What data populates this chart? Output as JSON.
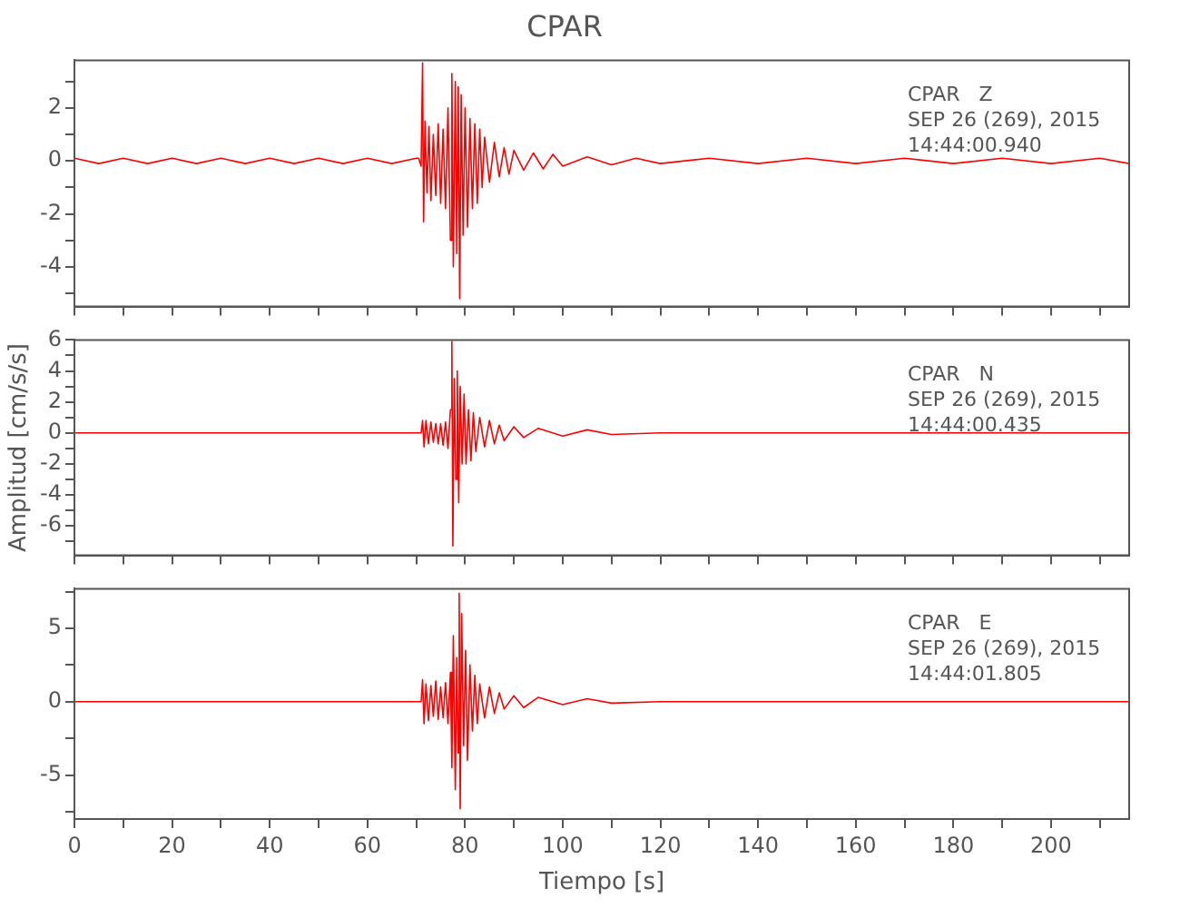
{
  "chart_data": [
    {
      "type": "line",
      "title": "CPAR",
      "annotations": [
        "CPAR   Z",
        "SEP 26 (269), 2015",
        "14:44:00.940"
      ],
      "xlim": [
        0,
        216
      ],
      "xticks": [
        0,
        {
          "value": 10,
          "label": null
        },
        20,
        {
          "value": 30,
          "label": null
        },
        40,
        {
          "value": 50,
          "label": null
        },
        60,
        {
          "value": 70,
          "label": null
        },
        80,
        {
          "value": 90,
          "label": null
        },
        100,
        {
          "value": 110,
          "label": null
        },
        120,
        {
          "value": 130,
          "label": null
        },
        140,
        {
          "value": 150,
          "label": null
        },
        160,
        {
          "value": 170,
          "label": null
        },
        180,
        {
          "value": 190,
          "label": null
        },
        200,
        {
          "value": 210,
          "label": null
        }
      ],
      "ylim": [
        -5.5,
        3.8
      ],
      "yticks": [
        {
          "value": -5,
          "label": null
        },
        -4,
        {
          "value": -3,
          "label": null
        },
        -2,
        {
          "value": -1,
          "label": null
        },
        0,
        {
          "value": 1,
          "label": null
        },
        2,
        {
          "value": 3,
          "label": null
        }
      ],
      "tick_labels": "y",
      "grid": false,
      "legend": false,
      "marker": "none",
      "line_style": "solid",
      "series": [
        {
          "color": "#ff0000",
          "x": [
            0,
            5,
            10,
            15,
            20,
            25,
            30,
            35,
            40,
            45,
            50,
            55,
            60,
            65,
            70,
            70.5,
            71,
            71.3,
            71.5,
            71.8,
            72.2,
            72.6,
            73,
            73.5,
            74,
            74.5,
            75,
            75.5,
            76,
            76.5,
            77,
            77.3,
            77.6,
            78,
            78.3,
            78.6,
            78.9,
            79.2,
            79.6,
            80,
            80.5,
            81,
            81.5,
            82,
            82.5,
            83,
            83.5,
            84,
            85,
            86,
            87,
            88,
            89,
            90,
            92,
            94,
            96,
            98,
            100,
            105,
            110,
            115,
            120,
            130,
            140,
            150,
            160,
            170,
            180,
            190,
            200,
            210,
            216
          ],
          "values": [
            0.1,
            -0.1,
            0.1,
            -0.1,
            0.1,
            -0.1,
            0.1,
            -0.1,
            0.1,
            -0.1,
            0.1,
            -0.1,
            0.1,
            -0.1,
            0.1,
            0.1,
            -0.2,
            3.7,
            -2.3,
            1.5,
            -1.2,
            1.3,
            -1.5,
            1,
            -1.3,
            1.4,
            -1.6,
            1.2,
            -1.8,
            2,
            -3,
            3.3,
            -4,
            3,
            -3.5,
            2.8,
            -5.2,
            2.5,
            -2.8,
            2,
            -2.5,
            1.6,
            -1.8,
            1.4,
            -1.6,
            1.2,
            -1,
            0.9,
            -0.8,
            0.7,
            -0.6,
            0.5,
            -0.5,
            0.4,
            -0.35,
            0.3,
            -0.3,
            0.25,
            -0.2,
            0.15,
            -0.15,
            0.1,
            -0.1,
            0.1,
            -0.1,
            0.1,
            -0.1,
            0.1,
            -0.1,
            0.1,
            -0.1,
            0.1,
            -0.1
          ]
        }
      ]
    },
    {
      "type": "line",
      "ylabel": "Amplitud [cm/s/s]",
      "annotations": [
        "CPAR   N",
        "SEP 26 (269), 2015",
        "14:44:00.435"
      ],
      "xlim": [
        0,
        216
      ],
      "xticks": [
        0,
        {
          "value": 10,
          "label": null
        },
        20,
        {
          "value": 30,
          "label": null
        },
        40,
        {
          "value": 50,
          "label": null
        },
        60,
        {
          "value": 70,
          "label": null
        },
        80,
        {
          "value": 90,
          "label": null
        },
        100,
        {
          "value": 110,
          "label": null
        },
        120,
        {
          "value": 130,
          "label": null
        },
        140,
        {
          "value": 150,
          "label": null
        },
        160,
        {
          "value": 170,
          "label": null
        },
        180,
        {
          "value": 190,
          "label": null
        },
        200,
        {
          "value": 210,
          "label": null
        }
      ],
      "ylim": [
        -7.9,
        6
      ],
      "yticks": [
        {
          "value": -7,
          "label": null
        },
        -6,
        {
          "value": -5,
          "label": null
        },
        -4,
        {
          "value": -3,
          "label": null
        },
        -2,
        {
          "value": -1,
          "label": null
        },
        0,
        {
          "value": 1,
          "label": null
        },
        2,
        {
          "value": 3,
          "label": null
        },
        4,
        {
          "value": 5,
          "label": null
        },
        6
      ],
      "tick_labels": "y",
      "grid": false,
      "legend": false,
      "marker": "none",
      "line_style": "solid",
      "series": [
        {
          "color": "#ff0000",
          "x": [
            0,
            10,
            20,
            30,
            40,
            50,
            60,
            70,
            71,
            71.3,
            71.6,
            72,
            72.5,
            73,
            73.5,
            74,
            74.5,
            75,
            75.5,
            76,
            76.5,
            77,
            77.3,
            77.5,
            77.8,
            78.1,
            78.4,
            78.7,
            79,
            79.4,
            79.8,
            80.2,
            80.7,
            81.2,
            81.7,
            82.2,
            83,
            84,
            85,
            86,
            87,
            88,
            90,
            92,
            95,
            100,
            105,
            110,
            120,
            140,
            160,
            180,
            200,
            216
          ],
          "values": [
            0,
            0,
            0,
            0,
            0,
            0,
            0,
            0,
            0,
            0.8,
            -0.9,
            0.8,
            -0.7,
            0.7,
            -0.6,
            0.6,
            -0.7,
            0.6,
            -0.8,
            0.7,
            -1,
            1.5,
            5.9,
            -7.3,
            3.5,
            -3,
            4,
            -4.5,
            3,
            -2,
            2.5,
            -2,
            1.5,
            -1.8,
            1.3,
            -1.2,
            1,
            -0.9,
            0.8,
            -0.7,
            0.5,
            -0.5,
            0.4,
            -0.3,
            0.3,
            -0.2,
            0.2,
            -0.1,
            0,
            0,
            0,
            0,
            0,
            0
          ]
        }
      ]
    },
    {
      "type": "line",
      "xlabel": "Tiempo [s]",
      "annotations": [
        "CPAR   E",
        "SEP 26 (269), 2015",
        "14:44:01.805"
      ],
      "xlim": [
        0,
        216
      ],
      "xticks": [
        0,
        {
          "value": 10,
          "label": null
        },
        20,
        {
          "value": 30,
          "label": null
        },
        40,
        {
          "value": 50,
          "label": null
        },
        60,
        {
          "value": 70,
          "label": null
        },
        80,
        {
          "value": 90,
          "label": null
        },
        100,
        {
          "value": 110,
          "label": null
        },
        120,
        {
          "value": 130,
          "label": null
        },
        140,
        {
          "value": 150,
          "label": null
        },
        160,
        {
          "value": 170,
          "label": null
        },
        180,
        {
          "value": 190,
          "label": null
        },
        200,
        {
          "value": 210,
          "label": null
        }
      ],
      "ylim": [
        -8,
        7.7
      ],
      "yticks": [
        {
          "value": -7.5,
          "label": null
        },
        -5,
        {
          "value": -2.5,
          "label": null
        },
        0,
        {
          "value": 2.5,
          "label": null
        },
        5,
        {
          "value": 7.5,
          "label": null
        }
      ],
      "grid": false,
      "legend": false,
      "marker": "none",
      "line_style": "solid",
      "series": [
        {
          "color": "#ff0000",
          "x": [
            0,
            10,
            20,
            30,
            40,
            50,
            60,
            70,
            71,
            71.3,
            71.6,
            72,
            72.5,
            73,
            73.5,
            74,
            74.5,
            75,
            75.5,
            76,
            76.5,
            77,
            77.3,
            77.6,
            78,
            78.3,
            78.6,
            78.8,
            79,
            79.3,
            79.7,
            80.1,
            80.5,
            81,
            81.5,
            82,
            82.5,
            83,
            84,
            85,
            86,
            87,
            88,
            90,
            92,
            95,
            100,
            105,
            110,
            120,
            140,
            160,
            180,
            200,
            216
          ],
          "values": [
            0,
            0,
            0,
            0,
            0,
            0,
            0,
            0,
            0,
            1.5,
            -1.5,
            1.2,
            -1.3,
            1.1,
            -1,
            1.4,
            -1.2,
            1,
            -1.1,
            1.3,
            -1.5,
            2,
            -4.5,
            4.5,
            -6,
            3,
            -3.5,
            7.4,
            -7.3,
            6,
            -3,
            3.5,
            -4,
            2.5,
            -2,
            1.8,
            -1.5,
            1.2,
            -1.1,
            1,
            -0.8,
            0.6,
            -0.5,
            0.4,
            -0.4,
            0.3,
            -0.2,
            0.2,
            -0.1,
            0,
            0,
            0,
            0,
            0,
            0
          ]
        }
      ]
    }
  ]
}
